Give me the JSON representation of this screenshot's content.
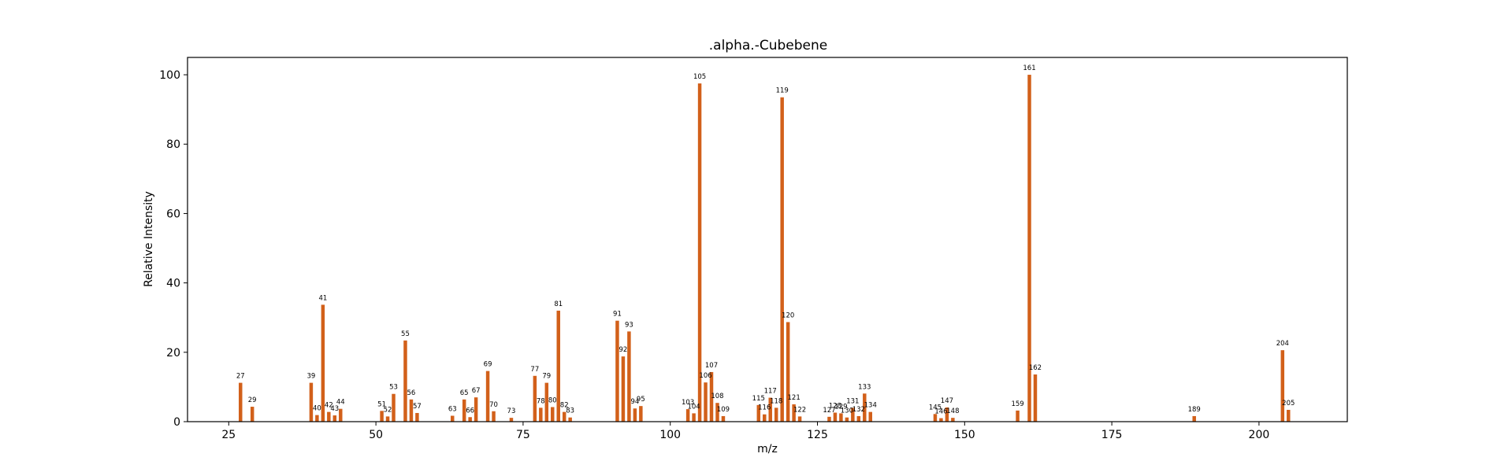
{
  "chart_data": {
    "type": "bar",
    "title": ".alpha.-Cubebene",
    "xlabel": "m/z",
    "ylabel": "Relative Intensity",
    "xlim": [
      18,
      215
    ],
    "ylim": [
      0,
      105
    ],
    "xticks": [
      25,
      50,
      75,
      100,
      125,
      150,
      175,
      200
    ],
    "yticks": [
      0,
      20,
      40,
      60,
      80,
      100
    ],
    "grid": false,
    "bar_color": "#d2601a",
    "x": [
      27,
      29,
      39,
      40,
      41,
      42,
      43,
      44,
      51,
      52,
      53,
      55,
      56,
      57,
      63,
      65,
      66,
      67,
      69,
      70,
      73,
      77,
      78,
      79,
      80,
      81,
      82,
      83,
      91,
      92,
      93,
      94,
      95,
      103,
      104,
      105,
      106,
      107,
      108,
      109,
      115,
      116,
      117,
      118,
      119,
      120,
      121,
      122,
      127,
      128,
      129,
      130,
      131,
      132,
      133,
      134,
      145,
      146,
      147,
      148,
      159,
      161,
      162,
      189,
      204,
      205
    ],
    "values": [
      11.2,
      4.3,
      11.2,
      1.9,
      33.7,
      2.8,
      1.8,
      3.7,
      3.1,
      1.5,
      8.0,
      23.4,
      6.4,
      2.5,
      1.7,
      6.4,
      1.3,
      7.0,
      14.6,
      3.0,
      1.1,
      13.2,
      4.0,
      11.2,
      4.2,
      32.0,
      2.8,
      1.2,
      29.1,
      18.8,
      26.0,
      3.8,
      4.5,
      3.6,
      2.4,
      97.5,
      11.3,
      14.3,
      5.4,
      1.6,
      4.8,
      2.1,
      6.9,
      4.0,
      93.5,
      28.7,
      5.0,
      1.5,
      1.4,
      2.6,
      2.4,
      1.2,
      4.0,
      1.6,
      8.1,
      2.8,
      2.2,
      1.0,
      4.1,
      1.1,
      3.2,
      100.0,
      13.6,
      1.6,
      20.6,
      3.4
    ],
    "labels": [
      "27",
      "29",
      "39",
      "40",
      "41",
      "42",
      "43",
      "44",
      "51",
      "52",
      "53",
      "55",
      "56",
      "57",
      "63",
      "65",
      "66",
      "67",
      "69",
      "70",
      "73",
      "77",
      "78",
      "79",
      "80",
      "81",
      "82",
      "83",
      "91",
      "92",
      "93",
      "94",
      "95",
      "103",
      "104",
      "105",
      "106",
      "107",
      "108",
      "109",
      "115",
      "116",
      "117",
      "118",
      "119",
      "120",
      "121",
      "122",
      "127",
      "128",
      "129",
      "130",
      "131",
      "132",
      "133",
      "134",
      "145",
      "146",
      "147",
      "148",
      "159",
      "161",
      "162",
      "189",
      "204",
      "205"
    ]
  }
}
